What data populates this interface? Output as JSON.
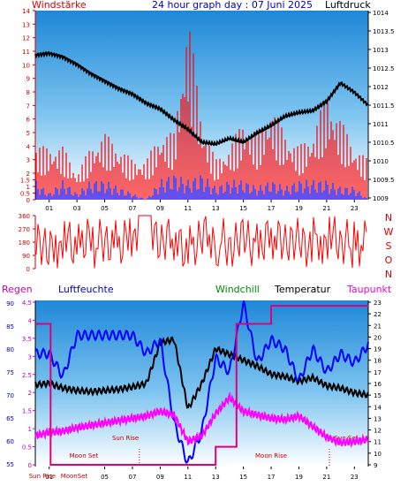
{
  "chart_data": [
    {
      "type": "line",
      "title": "24 hour graph day : 07 Juni 2025",
      "left_label": "Windstärke",
      "right_label": "Luftdruck",
      "x_ticks": [
        "01",
        "03",
        "05",
        "07",
        "09",
        "11",
        "13",
        "15",
        "17",
        "19",
        "21",
        "23"
      ],
      "left_ticks": [
        "0",
        "0.5",
        "1",
        "1.5",
        "2",
        "3",
        "4",
        "5",
        "6",
        "7",
        "8",
        "9",
        "10",
        "11",
        "12",
        "13",
        "14"
      ],
      "right_ticks": [
        "1009",
        "1009.5",
        "1010",
        "1010.5",
        "1011",
        "1011.5",
        "1012",
        "1012.5",
        "1013",
        "1013.5",
        "1014"
      ],
      "ylim_left": [
        0,
        14
      ],
      "ylim_right": [
        1009,
        1014
      ],
      "series": [
        {
          "name": "Luftdruck",
          "color": "#000000",
          "x": [
            0,
            1,
            2,
            3,
            4,
            5,
            6,
            7,
            8,
            9,
            10,
            11,
            12,
            13,
            14,
            15,
            16,
            17,
            18,
            19,
            20,
            21,
            22,
            23,
            24
          ],
          "values": [
            1012.85,
            1012.9,
            1012.8,
            1012.6,
            1012.35,
            1012.15,
            1011.95,
            1011.8,
            1011.55,
            1011.4,
            1011.1,
            1010.85,
            1010.5,
            1010.45,
            1010.6,
            1010.5,
            1010.75,
            1010.95,
            1011.2,
            1011.3,
            1011.35,
            1011.6,
            1012.1,
            1011.85,
            1011.5
          ]
        },
        {
          "name": "Windstärke",
          "color": "#ff0000",
          "x": [
            0,
            1,
            2,
            3,
            4,
            5,
            6,
            7,
            8,
            9,
            10,
            11,
            12,
            13,
            14,
            15,
            16,
            17,
            18,
            19,
            20,
            21,
            22,
            23,
            24
          ],
          "values": [
            4,
            4,
            4,
            2,
            4,
            5,
            4,
            3,
            3,
            5,
            5,
            14,
            6,
            3,
            4,
            6,
            5,
            7,
            5,
            4,
            5,
            8,
            6,
            4,
            3
          ]
        },
        {
          "name": "Windböen",
          "color": "#0000ff",
          "x": [
            0,
            1,
            2,
            3,
            4,
            5,
            6,
            7,
            8,
            9,
            10,
            11,
            12,
            13,
            14,
            15,
            16,
            17,
            18,
            19,
            20,
            21,
            22,
            23,
            24
          ],
          "values": [
            1.5,
            0.5,
            1.5,
            0.5,
            1.5,
            1.5,
            1,
            0.5,
            0,
            1.5,
            2,
            1.5,
            2,
            1,
            1.5,
            1.5,
            1,
            1.5,
            1,
            1.5,
            1.5,
            1.5,
            1,
            1,
            0
          ]
        }
      ]
    },
    {
      "type": "line",
      "left_ticks": [
        "0",
        "90",
        "180",
        "270",
        "360"
      ],
      "right_ticks": [
        "N",
        "W",
        "S",
        "O",
        "N"
      ],
      "ylim": [
        0,
        360
      ],
      "x": [
        0,
        1,
        2,
        3,
        4,
        5,
        6,
        7,
        8,
        9,
        10,
        11,
        12,
        13,
        14,
        15,
        16,
        17,
        18,
        19,
        20,
        21,
        22,
        23,
        24
      ],
      "series": [
        {
          "name": "Windrichtung",
          "color": "#ff0000",
          "values": [
            200,
            120,
            310,
            60,
            260,
            180,
            90,
            340,
            360,
            150,
            280,
            40,
            230,
            320,
            110,
            250,
            70,
            300,
            160,
            210,
            90,
            330,
            140,
            270,
            190
          ]
        }
      ]
    },
    {
      "type": "line",
      "labels": {
        "regen": "Regen",
        "luftfeuchte": "Luftfeuchte",
        "windchill": "Windchill",
        "temperatur": "Temperatur",
        "taupunkt": "Taupunkt"
      },
      "left_ticks_regen": [
        "0",
        "0.5",
        "1",
        "1.5",
        "2",
        "2.5",
        "3",
        "3.5",
        "4",
        "4.5"
      ],
      "left_ticks_humidity": [
        "55",
        "60",
        "65",
        "70",
        "75",
        "80",
        "85",
        "90"
      ],
      "right_ticks": [
        "9",
        "10",
        "11",
        "12",
        "13",
        "14",
        "15",
        "16",
        "17",
        "18",
        "19",
        "20",
        "21",
        "22",
        "23"
      ],
      "x_ticks": [
        "01",
        "05",
        "07",
        "09",
        "11",
        "13",
        "15",
        "17",
        "19",
        "21",
        "23"
      ],
      "annotations": [
        "Sun Rise",
        "Moon Set",
        "Sun Rise",
        "Moon Rise",
        "Sun Set",
        "MoonSet"
      ],
      "ylim_temp": [
        9,
        23
      ],
      "ylim_humidity": [
        55,
        90
      ],
      "ylim_regen": [
        0,
        4.5
      ],
      "x": [
        0,
        1,
        2,
        3,
        4,
        5,
        6,
        7,
        8,
        9,
        10,
        11,
        12,
        13,
        14,
        15,
        16,
        17,
        18,
        19,
        20,
        21,
        22,
        23,
        24
      ],
      "series": [
        {
          "name": "Temperatur",
          "color": "#000000",
          "values": [
            15.9,
            16,
            15.6,
            15.4,
            15.3,
            15.4,
            15.5,
            15.7,
            16,
            19.5,
            19.8,
            13.8,
            16,
            19,
            18.5,
            18,
            17.5,
            16.8,
            16.6,
            16.2,
            16.5,
            15.8,
            15.6,
            15.2,
            15
          ]
        },
        {
          "name": "Luftfeuchte",
          "color": "#0000ff",
          "values": [
            79,
            79,
            74,
            83,
            83,
            83,
            83,
            83,
            79,
            82,
            64,
            55,
            62,
            78,
            75,
            90,
            77,
            82,
            80,
            73,
            80,
            75,
            79,
            77,
            81
          ]
        },
        {
          "name": "Taupunkt",
          "color": "#ff00ff",
          "values": [
            11.5,
            11.8,
            11.9,
            12.2,
            12.4,
            12.6,
            12.8,
            13,
            13.2,
            13.6,
            13.3,
            11,
            11.5,
            13.4,
            14.8,
            13.6,
            13.3,
            13,
            12.9,
            13.2,
            12.3,
            11.4,
            10.9,
            11,
            11.2
          ]
        },
        {
          "name": "Regen",
          "color": "#e0007a",
          "x": [
            0,
            1.1,
            1.1,
            13,
            13,
            14.5,
            14.5,
            17,
            17,
            24
          ],
          "values": [
            3.9,
            3.9,
            0,
            0,
            0.5,
            0.5,
            3.9,
            3.9,
            4.4,
            4.4
          ]
        }
      ]
    }
  ]
}
